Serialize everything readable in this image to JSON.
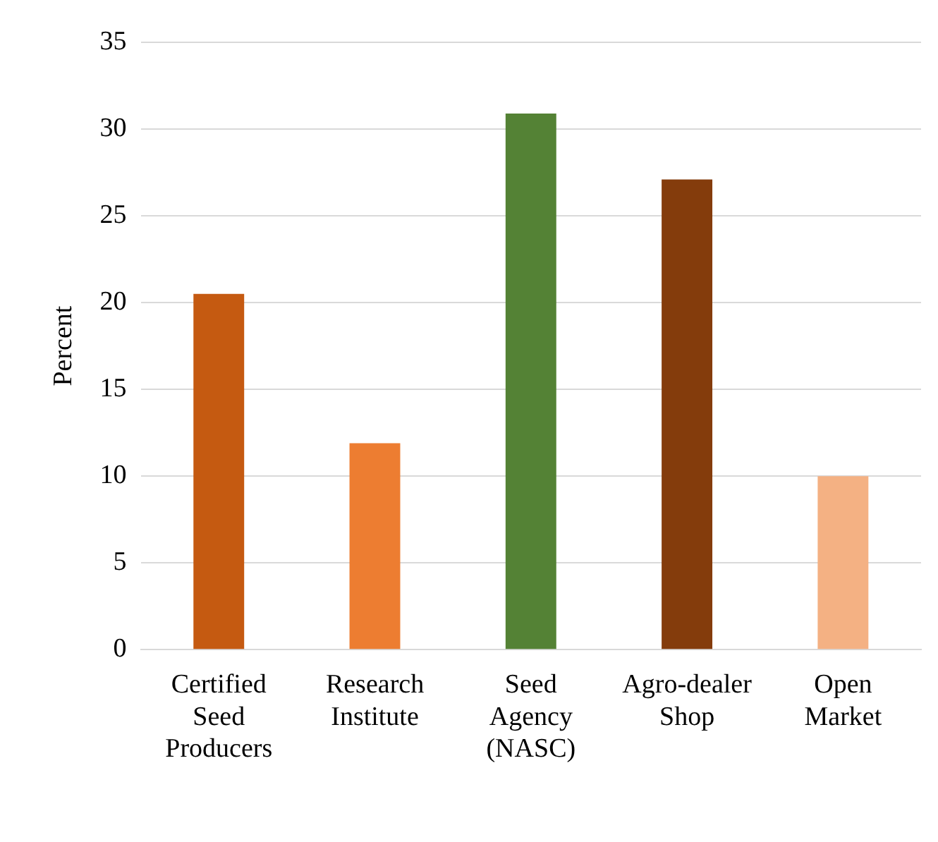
{
  "chart_data": {
    "type": "bar",
    "ylabel": "Percent",
    "categories": [
      "Certified Seed Producers",
      "Research Institute",
      "Seed Agency (NASC)",
      "Agro-dealer Shop",
      "Open Market"
    ],
    "values": [
      20.5,
      11.9,
      30.9,
      27.1,
      10.0
    ],
    "colors": [
      "#c55a11",
      "#ed7d31",
      "#548235",
      "#843c0c",
      "#f4b183"
    ],
    "ylim": [
      0,
      35
    ],
    "yticks": [
      0,
      5,
      10,
      15,
      20,
      25,
      30,
      35
    ],
    "grid": "y",
    "legend": false
  }
}
